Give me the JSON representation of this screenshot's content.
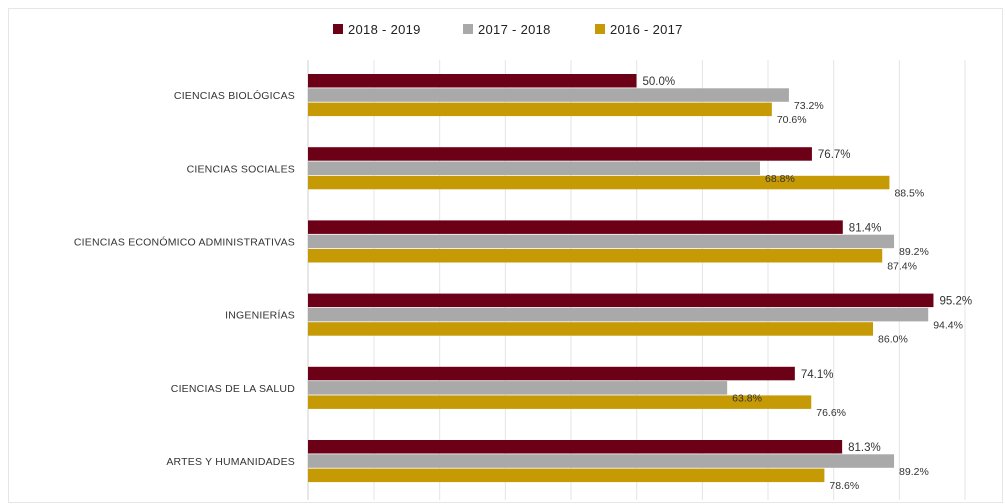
{
  "chart_data": {
    "type": "bar",
    "orientation": "horizontal",
    "categories": [
      "CIENCIAS BIOLÓGICAS",
      "CIENCIAS SOCIALES",
      "CIENCIAS ECONÓMICO ADMINISTRATIVAS",
      "INGENIERÍAS",
      "CIENCIAS DE LA SALUD",
      "ARTES Y HUMANIDADES"
    ],
    "series": [
      {
        "name": "2018 - 2019",
        "color": "#6b0016",
        "values": [
          50.0,
          76.7,
          81.4,
          95.2,
          74.1,
          81.3
        ],
        "labels": [
          "50.0%",
          "76.7%",
          "81.4%",
          "95.2%",
          "74.1%",
          "81.3%"
        ]
      },
      {
        "name": "2017 - 2018",
        "color": "#a9a9a9",
        "values": [
          73.2,
          68.8,
          89.2,
          94.4,
          63.8,
          89.2
        ],
        "labels": [
          "73.2%",
          "68.8%",
          "89.2%",
          "94.4%",
          "63.8%",
          "89.2%"
        ]
      },
      {
        "name": "2016 - 2017",
        "color": "#c69a05",
        "values": [
          70.6,
          88.5,
          87.4,
          86.0,
          76.6,
          78.6
        ],
        "labels": [
          "70.6%",
          "88.5%",
          "87.4%",
          "86.0%",
          "76.6%",
          "78.6%"
        ]
      }
    ],
    "xlim": [
      0,
      100
    ],
    "grid": true,
    "legend_position": "top-center"
  }
}
